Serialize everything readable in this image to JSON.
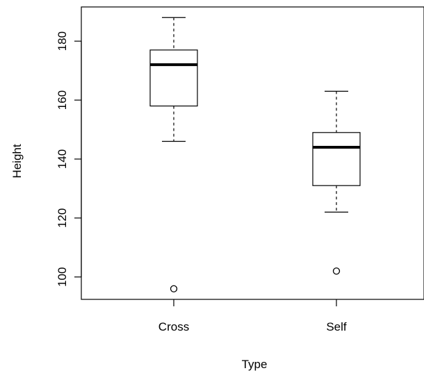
{
  "chart_data": {
    "type": "boxplot",
    "title": "",
    "xlabel": "Type",
    "ylabel": "Height",
    "categories": [
      "Cross",
      "Self"
    ],
    "ylim": [
      92.4,
      191.6
    ],
    "yticks": [
      100,
      120,
      140,
      160,
      180
    ],
    "ytick_labels": [
      "100",
      "120",
      "140",
      "160",
      "180"
    ],
    "grid": false,
    "legend": "none",
    "boxes": [
      {
        "name": "Cross",
        "whisker_low": 146,
        "q1": 158,
        "median": 172,
        "q3": 177,
        "whisker_high": 188,
        "outliers": [
          96
        ]
      },
      {
        "name": "Self",
        "whisker_low": 122,
        "q1": 131,
        "median": 144,
        "q3": 149,
        "whisker_high": 163,
        "outliers": [
          102
        ]
      }
    ],
    "colors": {
      "box_fill": "#ffffff",
      "stroke": "#000000"
    }
  }
}
